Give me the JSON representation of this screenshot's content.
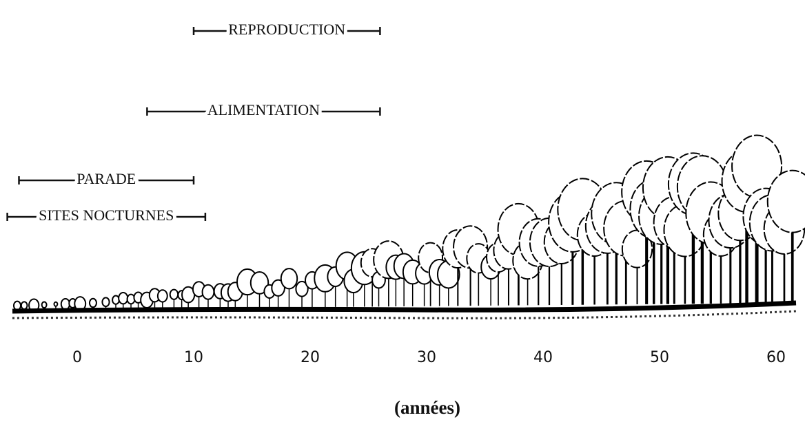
{
  "activities": [
    {
      "label": "REPRODUCTION",
      "start": 10,
      "end": 26
    },
    {
      "label": "ALIMENTATION",
      "start": 6,
      "end": 26
    },
    {
      "label": "PARADE",
      "start": -5,
      "end": 10
    },
    {
      "label": "SITES NOCTURNES",
      "start": -6,
      "end": 11
    }
  ],
  "axis": {
    "ticks": [
      0,
      10,
      20,
      30,
      40,
      50,
      60
    ],
    "label": "(années)"
  }
}
